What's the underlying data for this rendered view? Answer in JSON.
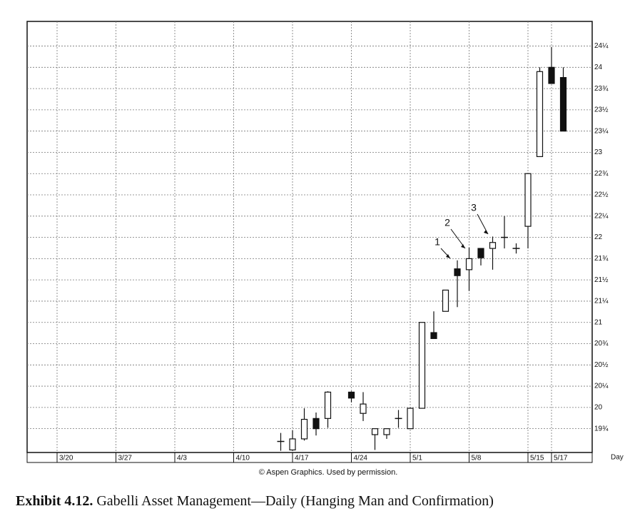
{
  "chart_data": {
    "type": "candlestick",
    "categories": [
      "3/20",
      null,
      null,
      null,
      null,
      "3/27",
      null,
      null,
      null,
      null,
      "4/3",
      null,
      null,
      null,
      null,
      "4/10",
      null,
      null,
      null,
      null,
      "4/17",
      null,
      null,
      null,
      null,
      "4/24",
      null,
      null,
      null,
      null,
      "5/1",
      null,
      null,
      null,
      null,
      "5/8",
      null,
      null,
      null,
      null,
      "5/15",
      null,
      "5/17",
      null
    ],
    "open": [
      null,
      null,
      null,
      null,
      null,
      null,
      null,
      null,
      null,
      null,
      null,
      null,
      null,
      null,
      null,
      null,
      null,
      null,
      null,
      19.6,
      19.5,
      19.63,
      19.87,
      19.87,
      null,
      20.18,
      19.93,
      19.68,
      19.68,
      19.87,
      19.75,
      19.99,
      20.88,
      21.13,
      21.63,
      21.62,
      21.87,
      21.87,
      22.0,
      21.87,
      22.13,
      22.95,
      24.0,
      23.88
    ],
    "high": [
      null,
      null,
      null,
      null,
      null,
      null,
      null,
      null,
      null,
      null,
      null,
      null,
      null,
      null,
      null,
      null,
      null,
      null,
      null,
      19.7,
      19.73,
      19.99,
      19.94,
      20.19,
      null,
      20.19,
      20.18,
      19.75,
      19.75,
      19.97,
      19.99,
      21.0,
      21.13,
      21.38,
      21.73,
      21.88,
      21.87,
      22.01,
      22.25,
      21.93,
      22.75,
      24.0,
      24.24,
      24.0
    ],
    "low": [
      null,
      null,
      null,
      null,
      null,
      null,
      null,
      null,
      null,
      null,
      null,
      null,
      null,
      null,
      null,
      null,
      null,
      null,
      null,
      19.49,
      19.49,
      19.61,
      19.67,
      19.76,
      null,
      20.06,
      19.84,
      19.5,
      19.63,
      19.76,
      19.75,
      19.99,
      20.81,
      21.13,
      21.18,
      21.37,
      21.67,
      21.62,
      21.87,
      21.81,
      21.87,
      22.95,
      23.81,
      23.25
    ],
    "close": [
      null,
      null,
      null,
      null,
      null,
      null,
      null,
      null,
      null,
      null,
      null,
      null,
      null,
      null,
      null,
      null,
      null,
      null,
      null,
      19.6,
      19.63,
      19.86,
      19.75,
      20.18,
      null,
      20.11,
      20.04,
      19.75,
      19.75,
      19.87,
      19.99,
      21.0,
      20.81,
      21.38,
      21.55,
      21.75,
      21.76,
      21.94,
      22.0,
      21.87,
      22.75,
      23.95,
      23.81,
      23.25
    ],
    "ylim": [
      19.47,
      24.54
    ],
    "yticks": [
      {
        "value": 19.75,
        "label": "19¾"
      },
      20,
      {
        "value": 20.25,
        "label": "20¼"
      },
      {
        "value": 20.5,
        "label": "20½"
      },
      {
        "value": 20.75,
        "label": "20¾"
      },
      21,
      {
        "value": 21.25,
        "label": "21¼"
      },
      {
        "value": 21.5,
        "label": "21½"
      },
      {
        "value": 21.75,
        "label": "21¾"
      },
      22,
      {
        "value": 22.25,
        "label": "22¼"
      },
      {
        "value": 22.5,
        "label": "22½"
      },
      {
        "value": 22.75,
        "label": "22¾"
      },
      23,
      {
        "value": 23.25,
        "label": "23¼"
      },
      {
        "value": 23.5,
        "label": "23½"
      },
      {
        "value": 23.75,
        "label": "23¾"
      },
      24,
      {
        "value": 24.25,
        "label": "24¼"
      }
    ],
    "grid": true,
    "x_label": "Day",
    "annotations": [
      "1",
      "2",
      "3"
    ],
    "source": "© Aspen Graphics. Used by permission.",
    "caption_label": "Exhibit 4.12.",
    "caption": "Gabelli Asset Management—Daily (Hanging Man and Confirmation)"
  }
}
